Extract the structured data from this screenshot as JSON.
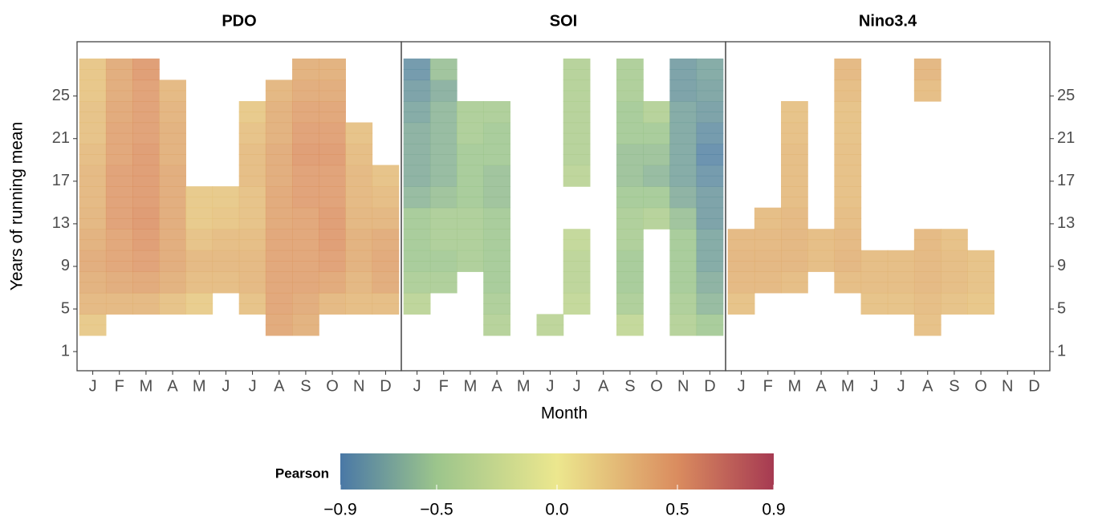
{
  "chart_data": {
    "type": "heatmap",
    "x_label": "Month",
    "y_label": "Years of running mean",
    "categories": [
      "J",
      "F",
      "M",
      "A",
      "M",
      "J",
      "J",
      "A",
      "S",
      "O",
      "N",
      "D"
    ],
    "years": [
      3,
      4,
      5,
      6,
      7,
      8,
      9,
      10,
      11,
      12,
      13,
      14,
      15,
      16,
      17,
      18,
      19,
      20,
      21,
      22,
      23,
      24,
      25,
      26,
      27,
      28
    ],
    "ylim": [
      -0.8,
      30.1
    ],
    "yticks": [
      1,
      5,
      9,
      13,
      17,
      21,
      25
    ],
    "colorbar": {
      "label": "Pearson",
      "clim": [
        -0.9,
        0.9
      ],
      "ticks": [
        {
          "value": -0.9,
          "label": "−0.9"
        },
        {
          "value": -0.5,
          "label": "−0.5"
        },
        {
          "value": 0,
          "label": "0.0"
        },
        0.5,
        0.9
      ],
      "colorscale": [
        {
          "value": -0.9,
          "color": "#4a78a6"
        },
        {
          "value": -0.5,
          "color": "#9cc58c"
        },
        {
          "value": 0,
          "color": "#ece78e"
        },
        {
          "value": 0.5,
          "color": "#da8c5f"
        },
        {
          "value": 0.9,
          "color": "#a63a52"
        }
      ]
    },
    "panels": [
      {
        "title": "PDO",
        "values": [
          [
            0.2,
            0.2,
            0.3,
            0.3,
            0.35,
            0.35,
            0.38,
            0.38,
            0.35,
            0.35,
            0.32,
            0.32,
            0.3,
            0.3,
            0.3,
            0.3,
            0.28,
            0.28,
            0.25,
            0.25,
            0.25,
            0.25,
            0.22,
            0.22,
            0.22,
            0.22
          ],
          [
            null,
            null,
            0.3,
            0.3,
            0.38,
            0.38,
            0.42,
            0.42,
            0.42,
            0.42,
            0.45,
            0.45,
            0.45,
            0.45,
            0.45,
            0.45,
            0.42,
            0.42,
            0.42,
            0.42,
            0.4,
            0.4,
            0.38,
            0.38,
            0.38,
            0.38
          ],
          [
            null,
            null,
            0.3,
            0.3,
            0.4,
            0.4,
            0.45,
            0.45,
            0.48,
            0.48,
            0.5,
            0.5,
            0.48,
            0.48,
            0.48,
            0.48,
            0.48,
            0.48,
            0.45,
            0.45,
            0.45,
            0.45,
            0.45,
            0.45,
            0.48,
            0.48
          ],
          [
            null,
            null,
            0.25,
            0.25,
            0.35,
            0.35,
            0.38,
            0.38,
            0.38,
            0.38,
            0.38,
            0.38,
            0.38,
            0.38,
            0.38,
            0.38,
            0.35,
            0.35,
            0.35,
            0.35,
            0.33,
            0.33,
            0.3,
            0.3,
            null,
            null
          ],
          [
            null,
            null,
            0.18,
            0.18,
            0.28,
            0.28,
            0.3,
            0.3,
            0.25,
            0.25,
            0.2,
            0.2,
            0.2,
            0.2,
            null,
            null,
            null,
            null,
            null,
            null,
            null,
            null,
            null,
            null,
            null,
            null
          ],
          [
            null,
            null,
            null,
            null,
            0.28,
            0.28,
            0.3,
            0.3,
            0.28,
            0.28,
            0.22,
            0.22,
            0.2,
            0.2,
            null,
            null,
            null,
            null,
            null,
            null,
            null,
            null,
            null,
            null,
            null,
            null
          ],
          [
            null,
            null,
            0.25,
            0.25,
            0.3,
            0.3,
            0.3,
            0.3,
            0.28,
            0.28,
            0.25,
            0.25,
            0.25,
            0.25,
            0.28,
            0.28,
            0.28,
            0.28,
            0.25,
            0.25,
            0.2,
            0.2,
            null,
            null,
            null,
            null
          ],
          [
            0.4,
            0.4,
            0.42,
            0.42,
            0.42,
            0.42,
            0.42,
            0.42,
            0.42,
            0.42,
            0.4,
            0.4,
            0.4,
            0.4,
            0.38,
            0.38,
            0.38,
            0.38,
            0.35,
            0.35,
            0.35,
            0.35,
            0.32,
            0.32,
            null,
            null
          ],
          [
            0.35,
            0.35,
            0.38,
            0.38,
            0.42,
            0.42,
            0.42,
            0.42,
            0.42,
            0.42,
            0.42,
            0.42,
            0.45,
            0.45,
            0.45,
            0.45,
            0.48,
            0.48,
            0.45,
            0.45,
            0.42,
            0.42,
            0.38,
            0.38,
            0.35,
            0.35
          ],
          [
            null,
            null,
            0.3,
            0.3,
            0.4,
            0.4,
            0.45,
            0.45,
            0.48,
            0.48,
            0.48,
            0.48,
            0.45,
            0.45,
            0.45,
            0.45,
            0.48,
            0.48,
            0.45,
            0.45,
            0.42,
            0.42,
            0.38,
            0.38,
            0.35,
            0.35
          ],
          [
            null,
            null,
            0.28,
            0.28,
            0.32,
            0.32,
            0.35,
            0.35,
            0.35,
            0.35,
            0.32,
            0.32,
            0.3,
            0.3,
            0.3,
            0.3,
            0.28,
            0.28,
            0.25,
            0.25,
            null,
            null,
            null,
            null,
            null,
            null
          ],
          [
            null,
            null,
            0.28,
            0.28,
            0.38,
            0.38,
            0.4,
            0.4,
            0.38,
            0.38,
            0.32,
            0.32,
            0.28,
            0.28,
            0.25,
            0.25,
            null,
            null,
            null,
            null,
            null,
            null,
            null,
            null,
            null,
            null
          ]
        ]
      },
      {
        "title": "SOI",
        "values": [
          [
            null,
            null,
            -0.35,
            -0.35,
            -0.45,
            -0.45,
            -0.5,
            -0.5,
            -0.5,
            -0.5,
            -0.5,
            -0.5,
            -0.6,
            -0.6,
            -0.65,
            -0.65,
            -0.65,
            -0.65,
            -0.65,
            -0.65,
            -0.7,
            -0.7,
            -0.75,
            -0.75,
            -0.8,
            -0.8
          ],
          [
            null,
            null,
            null,
            null,
            -0.45,
            -0.45,
            -0.5,
            -0.5,
            -0.45,
            -0.45,
            -0.45,
            -0.45,
            -0.55,
            -0.55,
            -0.6,
            -0.6,
            -0.6,
            -0.6,
            -0.6,
            -0.6,
            -0.6,
            -0.6,
            -0.65,
            -0.65,
            -0.55,
            -0.55
          ],
          [
            null,
            null,
            null,
            null,
            null,
            null,
            -0.45,
            -0.45,
            -0.45,
            -0.45,
            -0.45,
            -0.45,
            -0.5,
            -0.5,
            -0.5,
            -0.5,
            -0.5,
            -0.5,
            -0.45,
            -0.45,
            -0.45,
            -0.45,
            null,
            null,
            null,
            null
          ],
          [
            -0.4,
            -0.4,
            -0.45,
            -0.45,
            -0.5,
            -0.5,
            -0.5,
            -0.5,
            -0.5,
            -0.5,
            -0.5,
            -0.5,
            -0.55,
            -0.55,
            -0.55,
            -0.55,
            -0.5,
            -0.5,
            -0.5,
            -0.5,
            -0.45,
            -0.45,
            null,
            null,
            null,
            null
          ],
          [
            null,
            null,
            null,
            null,
            null,
            null,
            null,
            null,
            null,
            null,
            null,
            null,
            null,
            null,
            null,
            null,
            null,
            null,
            null,
            null,
            null,
            null,
            null,
            null,
            null,
            null
          ],
          [
            -0.35,
            -0.35,
            null,
            null,
            null,
            null,
            null,
            null,
            null,
            null,
            null,
            null,
            null,
            null,
            null,
            null,
            null,
            null,
            null,
            null,
            null,
            null,
            null,
            null,
            null,
            null
          ],
          [
            null,
            null,
            -0.3,
            -0.3,
            -0.35,
            -0.35,
            -0.35,
            -0.35,
            -0.3,
            -0.3,
            null,
            null,
            null,
            null,
            -0.35,
            -0.35,
            -0.4,
            -0.4,
            -0.4,
            -0.4,
            -0.4,
            -0.4,
            -0.4,
            -0.4,
            -0.4,
            -0.4
          ],
          [
            null,
            null,
            null,
            null,
            null,
            null,
            null,
            null,
            null,
            null,
            null,
            null,
            null,
            null,
            null,
            null,
            null,
            null,
            null,
            null,
            null,
            null,
            null,
            null,
            null,
            null
          ],
          [
            -0.3,
            -0.3,
            -0.45,
            -0.45,
            -0.5,
            -0.5,
            -0.5,
            -0.5,
            -0.45,
            -0.45,
            -0.45,
            -0.45,
            -0.5,
            -0.5,
            -0.55,
            -0.55,
            -0.55,
            -0.55,
            -0.5,
            -0.5,
            -0.5,
            -0.5,
            -0.45,
            -0.45,
            -0.45,
            -0.45
          ],
          [
            null,
            null,
            null,
            null,
            null,
            null,
            null,
            null,
            null,
            null,
            -0.4,
            -0.4,
            -0.5,
            -0.5,
            -0.6,
            -0.6,
            -0.55,
            -0.55,
            -0.5,
            -0.5,
            -0.4,
            -0.4,
            null,
            null,
            null,
            null
          ],
          [
            -0.4,
            -0.4,
            -0.45,
            -0.45,
            -0.5,
            -0.5,
            -0.5,
            -0.5,
            -0.5,
            -0.5,
            -0.55,
            -0.55,
            -0.65,
            -0.65,
            -0.7,
            -0.7,
            -0.7,
            -0.7,
            -0.7,
            -0.7,
            -0.7,
            -0.7,
            -0.75,
            -0.75,
            -0.75,
            -0.75
          ],
          [
            -0.5,
            -0.5,
            -0.6,
            -0.6,
            -0.65,
            -0.65,
            -0.7,
            -0.7,
            -0.7,
            -0.7,
            -0.75,
            -0.75,
            -0.75,
            -0.75,
            -0.8,
            -0.8,
            -0.85,
            -0.85,
            -0.8,
            -0.8,
            -0.75,
            -0.75,
            -0.72,
            -0.72,
            -0.7,
            -0.7
          ]
        ]
      },
      {
        "title": "Nino3.4",
        "values": [
          [
            null,
            null,
            0.25,
            0.25,
            0.3,
            0.3,
            0.32,
            0.32,
            0.3,
            0.3,
            null,
            null,
            null,
            null,
            null,
            null,
            null,
            null,
            null,
            null,
            null,
            null,
            null,
            null,
            null,
            null
          ],
          [
            null,
            null,
            null,
            null,
            0.3,
            0.3,
            0.32,
            0.32,
            0.3,
            0.3,
            0.28,
            0.28,
            null,
            null,
            null,
            null,
            null,
            null,
            null,
            null,
            null,
            null,
            null,
            null,
            null,
            null
          ],
          [
            null,
            null,
            null,
            null,
            0.28,
            0.28,
            0.32,
            0.32,
            0.32,
            0.32,
            0.3,
            0.3,
            0.28,
            0.28,
            0.28,
            0.28,
            0.28,
            0.28,
            0.26,
            0.26,
            0.25,
            0.25,
            null,
            null,
            null,
            null
          ],
          [
            null,
            null,
            null,
            null,
            null,
            null,
            0.28,
            0.28,
            0.28,
            0.28,
            null,
            null,
            null,
            null,
            null,
            null,
            null,
            null,
            null,
            null,
            null,
            null,
            null,
            null,
            null,
            null
          ],
          [
            null,
            null,
            null,
            null,
            0.28,
            0.28,
            0.32,
            0.32,
            0.3,
            0.3,
            0.28,
            0.28,
            0.26,
            0.26,
            0.26,
            0.26,
            0.26,
            0.26,
            0.25,
            0.25,
            0.25,
            0.25,
            0.28,
            0.28,
            0.3,
            0.3
          ],
          [
            null,
            null,
            0.25,
            0.25,
            0.28,
            0.28,
            0.28,
            0.28,
            null,
            null,
            null,
            null,
            null,
            null,
            null,
            null,
            null,
            null,
            null,
            null,
            null,
            null,
            null,
            null,
            null,
            null
          ],
          [
            null,
            null,
            0.25,
            0.25,
            0.28,
            0.28,
            0.28,
            0.28,
            null,
            null,
            null,
            null,
            null,
            null,
            null,
            null,
            null,
            null,
            null,
            null,
            null,
            null,
            null,
            null,
            null,
            null
          ],
          [
            0.26,
            0.26,
            0.28,
            0.28,
            0.3,
            0.3,
            0.3,
            0.3,
            0.3,
            0.3,
            null,
            null,
            null,
            null,
            null,
            null,
            null,
            null,
            null,
            null,
            null,
            null,
            0.28,
            0.28,
            0.32,
            0.32
          ],
          [
            null,
            null,
            0.25,
            0.25,
            0.28,
            0.28,
            0.28,
            0.28,
            0.26,
            0.26,
            null,
            null,
            null,
            null,
            null,
            null,
            null,
            null,
            null,
            null,
            null,
            null,
            null,
            null,
            null,
            null
          ],
          [
            null,
            null,
            0.22,
            0.22,
            0.25,
            0.25,
            0.25,
            0.25,
            null,
            null,
            null,
            null,
            null,
            null,
            null,
            null,
            null,
            null,
            null,
            null,
            null,
            null,
            null,
            null,
            null,
            null
          ],
          [
            null,
            null,
            null,
            null,
            null,
            null,
            null,
            null,
            null,
            null,
            null,
            null,
            null,
            null,
            null,
            null,
            null,
            null,
            null,
            null,
            null,
            null,
            null,
            null,
            null,
            null
          ],
          [
            null,
            null,
            null,
            null,
            null,
            null,
            null,
            null,
            null,
            null,
            null,
            null,
            null,
            null,
            null,
            null,
            null,
            null,
            null,
            null,
            null,
            null,
            null,
            null,
            null,
            null
          ]
        ]
      }
    ]
  }
}
